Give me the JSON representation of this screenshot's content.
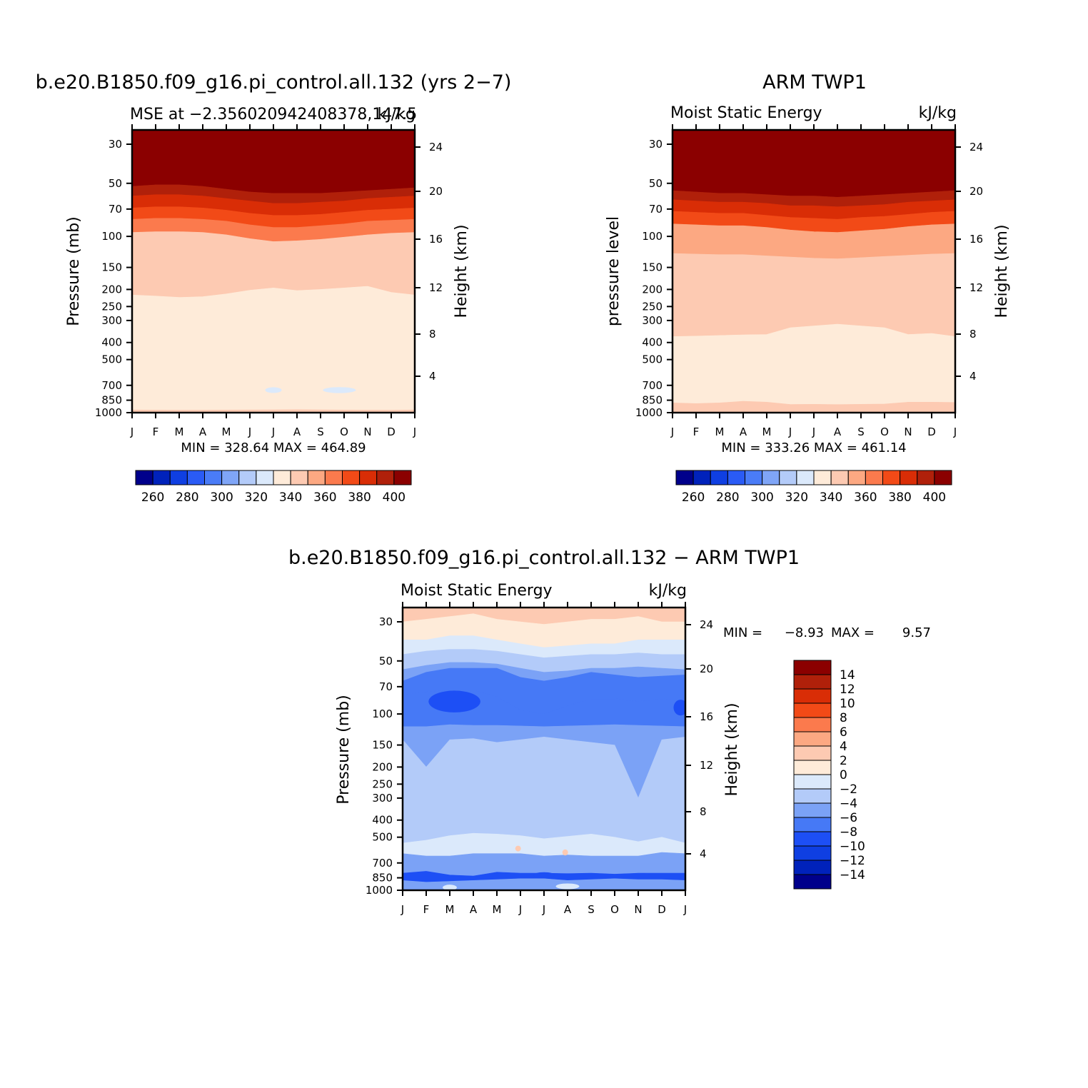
{
  "palette": {
    "abs": [
      "#00008b",
      "#0022bb",
      "#0f3fe2",
      "#2a5bf5",
      "#4a7cf7",
      "#7fa5f7",
      "#b3cbf9",
      "#dbe9fb",
      "#feebd9",
      "#fdcab2",
      "#fca882",
      "#fb7a4d",
      "#f24a17",
      "#d92d06",
      "#b0200a",
      "#8b0000"
    ],
    "diff": [
      "#00008b",
      "#0022bb",
      "#0f3fe2",
      "#1d4ff5",
      "#4679f6",
      "#7ba2f6",
      "#b3cbf9",
      "#dbe9fb",
      "#feebd9",
      "#fdcab2",
      "#fca882",
      "#fb7a4d",
      "#f24a17",
      "#d92d06",
      "#b0200a",
      "#8b0000"
    ]
  },
  "chart_data": [
    {
      "id": "model",
      "type": "heatmap",
      "title": "b.e20.B1850.f09_g16.pi_control.all.132 (yrs 2−7)",
      "left_string": "MSE at −2.356020942408378,147.5",
      "right_string": "kJ/kg",
      "ylabel": "Pressure (mb)",
      "y2label": "Height (km)",
      "months": [
        "J",
        "F",
        "M",
        "A",
        "M",
        "J",
        "J",
        "A",
        "S",
        "O",
        "N",
        "D",
        "J"
      ],
      "pressure_ticks": [
        "30",
        "50",
        "70",
        "100",
        "150",
        "200",
        "250",
        "300",
        "400",
        "500",
        "700",
        "850",
        "1000"
      ],
      "height_ticks": [
        "24",
        "20",
        "16",
        "12",
        "8",
        "4"
      ],
      "stats": "MIN = 328.64 MAX = 464.89",
      "colorbar_labels": [
        "260",
        "280",
        "300",
        "320",
        "340",
        "360",
        "380",
        "400"
      ],
      "bands": [
        {
          "color": 15,
          "from": "30",
          "to": [
            52,
            51,
            51,
            52,
            54,
            56,
            57,
            57,
            57,
            56,
            55,
            54,
            53
          ]
        },
        {
          "color": 14,
          "from": [
            52,
            51,
            51,
            52,
            54,
            56,
            57,
            57,
            57,
            56,
            55,
            54,
            53
          ],
          "to": [
            59,
            58,
            58,
            59,
            61,
            63,
            65,
            65,
            64,
            63,
            61,
            60,
            59
          ]
        },
        {
          "color": 13,
          "from": [
            59,
            58,
            58,
            59,
            61,
            63,
            65,
            65,
            64,
            63,
            61,
            60,
            59
          ],
          "to": [
            69,
            68,
            68,
            69,
            71,
            74,
            76,
            76,
            75,
            73,
            71,
            70,
            69
          ]
        },
        {
          "color": 12,
          "from": [
            69,
            68,
            68,
            69,
            71,
            74,
            76,
            76,
            75,
            73,
            71,
            70,
            69
          ],
          "to": [
            80,
            79,
            79,
            80,
            82,
            86,
            89,
            89,
            87,
            85,
            82,
            81,
            80
          ]
        },
        {
          "color": 11,
          "from": [
            80,
            79,
            79,
            80,
            82,
            86,
            89,
            89,
            87,
            85,
            82,
            81,
            80
          ],
          "to": [
            95,
            94,
            94,
            95,
            98,
            103,
            107,
            106,
            104,
            101,
            98,
            96,
            95
          ]
        },
        {
          "color": 9,
          "from": [
            95,
            94,
            94,
            95,
            98,
            103,
            107,
            106,
            104,
            101,
            98,
            96,
            95
          ],
          "to": [
            215,
            218,
            222,
            220,
            212,
            202,
            196,
            203,
            200,
            196,
            192,
            208,
            215
          ]
        },
        {
          "color": 8,
          "from": [
            215,
            218,
            222,
            220,
            212,
            202,
            196,
            203,
            200,
            196,
            192,
            208,
            215
          ],
          "to": [
            965,
            967,
            969,
            968,
            966,
            965,
            963,
            962,
            964,
            966,
            967,
            968,
            965
          ]
        },
        {
          "color": 9,
          "from": [
            965,
            967,
            969,
            968,
            966,
            965,
            963,
            962,
            964,
            966,
            967,
            968,
            965
          ],
          "to": "1000"
        }
      ],
      "blobs": [
        {
          "color": 7,
          "t": 6.0,
          "p": 745,
          "dt": 0.35,
          "dp": 20
        },
        {
          "color": 7,
          "t": 8.8,
          "p": 745,
          "dt": 0.7,
          "dp": 30
        }
      ]
    },
    {
      "id": "obs",
      "type": "heatmap",
      "title": "ARM TWP1",
      "left_string": "Moist Static Energy",
      "right_string": "kJ/kg",
      "ylabel": "pressure level",
      "y2label": "Height (km)",
      "months": [
        "J",
        "F",
        "M",
        "A",
        "M",
        "J",
        "J",
        "A",
        "S",
        "O",
        "N",
        "D",
        "J"
      ],
      "pressure_ticks": [
        "30",
        "50",
        "70",
        "100",
        "150",
        "200",
        "250",
        "300",
        "400",
        "500",
        "700",
        "850",
        "1000"
      ],
      "height_ticks": [
        "24",
        "20",
        "16",
        "12",
        "8",
        "4"
      ],
      "stats": "MIN = 333.26 MAX = 461.14",
      "colorbar_labels": [
        "260",
        "280",
        "300",
        "320",
        "340",
        "360",
        "380",
        "400"
      ],
      "bands": [
        {
          "color": 15,
          "from": "30",
          "to": [
            55,
            56,
            57,
            57,
            58,
            59,
            59,
            60,
            59,
            58,
            57,
            56,
            55
          ]
        },
        {
          "color": 14,
          "from": [
            55,
            56,
            57,
            57,
            58,
            59,
            59,
            60,
            59,
            58,
            57,
            56,
            55
          ],
          "to": [
            62,
            63,
            64,
            64,
            65,
            67,
            67,
            68,
            67,
            66,
            64,
            63,
            62
          ]
        },
        {
          "color": 13,
          "from": [
            62,
            63,
            64,
            64,
            65,
            67,
            67,
            68,
            67,
            66,
            64,
            63,
            62
          ],
          "to": [
            72,
            73,
            74,
            74,
            76,
            78,
            79,
            80,
            78,
            77,
            75,
            73,
            72
          ]
        },
        {
          "color": 12,
          "from": [
            72,
            73,
            74,
            74,
            76,
            78,
            79,
            80,
            78,
            77,
            75,
            73,
            72
          ],
          "to": [
            85,
            86,
            87,
            87,
            89,
            92,
            94,
            95,
            93,
            91,
            88,
            86,
            85
          ]
        },
        {
          "color": 10,
          "from": [
            85,
            86,
            87,
            87,
            89,
            92,
            94,
            95,
            93,
            91,
            88,
            86,
            85
          ],
          "to": [
            125,
            126,
            127,
            127,
            129,
            131,
            133,
            134,
            132,
            130,
            128,
            126,
            125
          ]
        },
        {
          "color": 9,
          "from": [
            125,
            126,
            127,
            127,
            129,
            131,
            133,
            134,
            132,
            130,
            128,
            126,
            125
          ],
          "to": [
            370,
            368,
            365,
            362,
            360,
            330,
            322,
            315,
            322,
            330,
            360,
            355,
            370
          ]
        },
        {
          "color": 8,
          "from": [
            370,
            368,
            365,
            362,
            360,
            330,
            322,
            315,
            322,
            330,
            360,
            355,
            370
          ],
          "to": [
            880,
            888,
            880,
            862,
            872,
            898,
            897,
            900,
            897,
            893,
            872,
            872,
            875
          ]
        },
        {
          "color": 9,
          "from": [
            880,
            888,
            880,
            862,
            872,
            898,
            897,
            900,
            897,
            893,
            872,
            872,
            875
          ],
          "to": "1000"
        }
      ],
      "blobs": []
    },
    {
      "id": "diff",
      "type": "heatmap",
      "title": "b.e20.B1850.f09_g16.pi_control.all.132 − ARM TWP1",
      "left_string": "Moist Static Energy",
      "right_string": "kJ/kg",
      "ylabel": "Pressure (mb)",
      "y2label": "Height (km)",
      "months": [
        "J",
        "F",
        "M",
        "A",
        "M",
        "J",
        "J",
        "A",
        "S",
        "O",
        "N",
        "D",
        "J"
      ],
      "pressure_ticks": [
        "30",
        "50",
        "70",
        "100",
        "150",
        "200",
        "250",
        "300",
        "400",
        "500",
        "700",
        "850",
        "1000"
      ],
      "height_ticks": [
        "24",
        "20",
        "16",
        "12",
        "8",
        "4"
      ],
      "stats_min_label": "MIN =",
      "stats_min": "−8.93",
      "stats_max_label": "MAX =",
      "stats_max": "9.57",
      "colorbar_labels": [
        "14",
        "12",
        "10",
        "8",
        "6",
        "4",
        "2",
        "0",
        "−2",
        "−4",
        "−6",
        "−8",
        "−10",
        "−12",
        "−14"
      ],
      "bands": [
        {
          "color": 9,
          "from": "top",
          "to": [
            30,
            29,
            28,
            27,
            29,
            30,
            31,
            30,
            29,
            29,
            28,
            30,
            30
          ]
        },
        {
          "color": 8,
          "from": [
            30,
            29,
            28,
            27,
            29,
            30,
            31,
            30,
            29,
            29,
            28,
            30,
            30
          ],
          "to": [
            38,
            38,
            36,
            36,
            38,
            40,
            42,
            41,
            40,
            40,
            38,
            38,
            38
          ]
        },
        {
          "color": 7,
          "from": [
            38,
            38,
            36,
            36,
            38,
            40,
            42,
            41,
            40,
            40,
            38,
            38,
            38
          ],
          "to": [
            46,
            44,
            43,
            43,
            44,
            46,
            48,
            47,
            46,
            46,
            45,
            46,
            46
          ]
        },
        {
          "color": 6,
          "from": [
            46,
            44,
            43,
            43,
            44,
            46,
            48,
            47,
            46,
            46,
            45,
            46,
            46
          ],
          "to": [
            56,
            53,
            51,
            51,
            52,
            55,
            58,
            57,
            55,
            55,
            54,
            55,
            56
          ]
        },
        {
          "color": 5,
          "from": [
            56,
            53,
            51,
            51,
            52,
            55,
            58,
            57,
            55,
            55,
            54,
            55,
            56
          ],
          "to": [
            65,
            58,
            55,
            55,
            55,
            62,
            65,
            62,
            58,
            60,
            62,
            61,
            60
          ]
        },
        {
          "color": 4,
          "from": [
            65,
            58,
            55,
            55,
            55,
            62,
            65,
            62,
            58,
            60,
            62,
            61,
            60
          ],
          "to": [
            78,
            75,
            73,
            73,
            80,
            95,
            100,
            90,
            82,
            82,
            85,
            82,
            85
          ]
        },
        {
          "color": 4,
          "from": [
            78,
            75,
            73,
            73,
            80,
            95,
            100,
            90,
            82,
            82,
            85,
            82,
            85
          ],
          "to": [
            118,
            118,
            115,
            116,
            116,
            117,
            118,
            117,
            116,
            115,
            116,
            117,
            118
          ]
        },
        {
          "color": 5,
          "from": [
            118,
            118,
            115,
            116,
            116,
            117,
            118,
            117,
            116,
            115,
            116,
            117,
            118
          ],
          "to": [
            140,
            200,
            140,
            138,
            145,
            140,
            135,
            140,
            145,
            150,
            300,
            140,
            135
          ]
        },
        {
          "color": 6,
          "from": [
            140,
            200,
            140,
            138,
            145,
            140,
            135,
            140,
            145,
            150,
            300,
            140,
            135
          ],
          "to": [
            540,
            520,
            490,
            475,
            480,
            490,
            510,
            495,
            480,
            500,
            530,
            500,
            540
          ]
        },
        {
          "color": 7,
          "from": [
            540,
            520,
            490,
            475,
            480,
            490,
            510,
            495,
            480,
            500,
            530,
            500,
            540
          ],
          "to": [
            620,
            640,
            640,
            620,
            620,
            620,
            640,
            630,
            640,
            640,
            640,
            610,
            620
          ]
        },
        {
          "color": 5,
          "from": [
            620,
            640,
            640,
            620,
            620,
            620,
            640,
            630,
            640,
            640,
            640,
            610,
            620
          ],
          "to": [
            800,
            780,
            820,
            830,
            790,
            800,
            800,
            805,
            800,
            810,
            800,
            800,
            800
          ]
        },
        {
          "color": 3,
          "from": [
            800,
            780,
            820,
            830,
            790,
            800,
            800,
            805,
            800,
            810,
            800,
            800,
            800
          ],
          "to": [
            880,
            900,
            890,
            880,
            870,
            860,
            860,
            880,
            870,
            860,
            870,
            870,
            880
          ]
        },
        {
          "color": 5,
          "from": [
            880,
            900,
            890,
            880,
            870,
            860,
            860,
            880,
            870,
            860,
            870,
            870,
            880
          ],
          "to": "1000"
        }
      ],
      "blobs": [
        {
          "color": 3,
          "t": 2.2,
          "p": 85,
          "dt": 1.1,
          "dp": 13
        },
        {
          "color": 3,
          "t": 11.8,
          "p": 92,
          "dt": 0.3,
          "dp": 10
        },
        {
          "color": 9,
          "t": 4.9,
          "p": 580,
          "dt": 0.12,
          "dp": 18
        },
        {
          "color": 9,
          "t": 6.9,
          "p": 610,
          "dt": 0.12,
          "dp": 25
        },
        {
          "color": 3,
          "t": 6.0,
          "p": 820,
          "dt": 0.45,
          "dp": 25
        },
        {
          "color": 3,
          "t": 10.2,
          "p": 830,
          "dt": 0.35,
          "dp": 16
        },
        {
          "color": 7,
          "t": 7.0,
          "p": 950,
          "dt": 0.5,
          "dp": 25
        },
        {
          "color": 7,
          "t": 2.0,
          "p": 965,
          "dt": 0.3,
          "dp": 15
        }
      ]
    }
  ]
}
